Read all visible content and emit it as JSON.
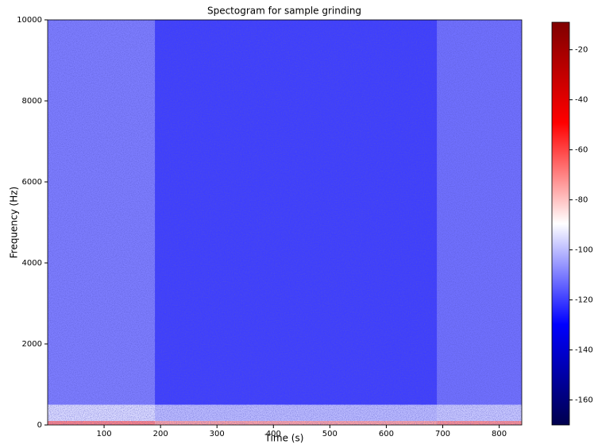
{
  "chart_data": {
    "type": "spectrogram",
    "title": "Spectogram for sample grinding",
    "x_label": "Time (s)",
    "y_label": "Frequency (Hz)",
    "time_bins": [
      0,
      190,
      690,
      840
    ],
    "freq_bins": [
      0,
      100,
      500,
      10000
    ],
    "values": [
      [
        -70,
        -95,
        -110
      ],
      [
        -75,
        -100,
        -120
      ],
      [
        -72,
        -98,
        -112
      ]
    ],
    "xlim": [
      0,
      840
    ],
    "xticks": [
      100,
      200,
      300,
      400,
      500,
      600,
      700,
      800
    ],
    "ylim": [
      0,
      10000
    ],
    "yticks": [
      0,
      2000,
      4000,
      6000,
      8000,
      10000
    ],
    "colormap": "seismic",
    "clim": [
      -170,
      -9
    ],
    "cticks": [
      -20,
      -40,
      -60,
      -80,
      -100,
      -120,
      -140,
      -160
    ]
  }
}
